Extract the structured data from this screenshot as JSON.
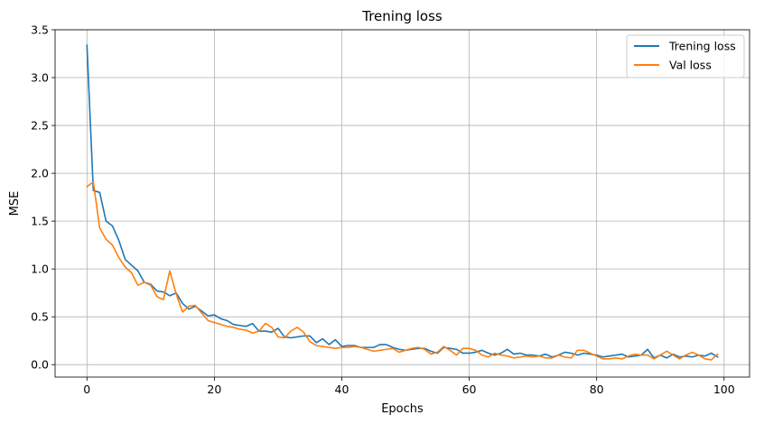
{
  "chart_data": {
    "type": "line",
    "title": "Trening loss",
    "xlabel": "Epochs",
    "ylabel": "MSE",
    "xlim": [
      -5,
      104
    ],
    "ylim": [
      -0.13,
      3.5
    ],
    "xticks": [
      0,
      20,
      40,
      60,
      80,
      100
    ],
    "yticks": [
      0.0,
      0.5,
      1.0,
      1.5,
      2.0,
      2.5,
      3.0,
      3.5
    ],
    "grid": true,
    "legend_position": "top-right",
    "x": [
      0,
      1,
      2,
      3,
      4,
      5,
      6,
      7,
      8,
      9,
      10,
      11,
      12,
      13,
      14,
      15,
      16,
      17,
      18,
      19,
      20,
      21,
      22,
      23,
      24,
      25,
      26,
      27,
      28,
      29,
      30,
      31,
      32,
      33,
      34,
      35,
      36,
      37,
      38,
      39,
      40,
      41,
      42,
      43,
      44,
      45,
      46,
      47,
      48,
      49,
      50,
      51,
      52,
      53,
      54,
      55,
      56,
      57,
      58,
      59,
      60,
      61,
      62,
      63,
      64,
      65,
      66,
      67,
      68,
      69,
      70,
      71,
      72,
      73,
      74,
      75,
      76,
      77,
      78,
      79,
      80,
      81,
      82,
      83,
      84,
      85,
      86,
      87,
      88,
      89,
      90,
      91,
      92,
      93,
      94,
      95,
      96,
      97,
      98,
      99
    ],
    "series": [
      {
        "name": "Trening loss",
        "color": "#1f77b4",
        "values": [
          3.34,
          1.82,
          1.8,
          1.5,
          1.45,
          1.3,
          1.1,
          1.04,
          0.98,
          0.86,
          0.84,
          0.77,
          0.76,
          0.72,
          0.75,
          0.64,
          0.58,
          0.61,
          0.56,
          0.51,
          0.52,
          0.48,
          0.46,
          0.42,
          0.41,
          0.4,
          0.43,
          0.35,
          0.35,
          0.34,
          0.38,
          0.29,
          0.28,
          0.29,
          0.3,
          0.3,
          0.23,
          0.27,
          0.21,
          0.26,
          0.19,
          0.2,
          0.2,
          0.18,
          0.18,
          0.18,
          0.21,
          0.21,
          0.18,
          0.16,
          0.15,
          0.16,
          0.17,
          0.17,
          0.14,
          0.12,
          0.18,
          0.17,
          0.16,
          0.12,
          0.12,
          0.13,
          0.15,
          0.12,
          0.1,
          0.12,
          0.16,
          0.11,
          0.12,
          0.1,
          0.1,
          0.09,
          0.11,
          0.08,
          0.1,
          0.13,
          0.12,
          0.1,
          0.12,
          0.11,
          0.1,
          0.08,
          0.09,
          0.1,
          0.11,
          0.08,
          0.09,
          0.1,
          0.16,
          0.07,
          0.1,
          0.07,
          0.11,
          0.08,
          0.09,
          0.08,
          0.1,
          0.09,
          0.12,
          0.08
        ]
      },
      {
        "name": "Val loss",
        "color": "#ff7f0e",
        "values": [
          1.86,
          1.91,
          1.43,
          1.31,
          1.25,
          1.12,
          1.02,
          0.96,
          0.83,
          0.86,
          0.83,
          0.71,
          0.68,
          0.98,
          0.74,
          0.55,
          0.61,
          0.62,
          0.54,
          0.46,
          0.44,
          0.42,
          0.4,
          0.39,
          0.37,
          0.36,
          0.33,
          0.35,
          0.43,
          0.39,
          0.29,
          0.28,
          0.35,
          0.39,
          0.34,
          0.24,
          0.2,
          0.19,
          0.18,
          0.17,
          0.18,
          0.18,
          0.19,
          0.18,
          0.16,
          0.14,
          0.15,
          0.16,
          0.17,
          0.13,
          0.15,
          0.17,
          0.18,
          0.16,
          0.11,
          0.13,
          0.19,
          0.15,
          0.1,
          0.17,
          0.17,
          0.15,
          0.1,
          0.08,
          0.12,
          0.1,
          0.09,
          0.07,
          0.08,
          0.09,
          0.08,
          0.09,
          0.07,
          0.07,
          0.1,
          0.08,
          0.07,
          0.15,
          0.15,
          0.12,
          0.09,
          0.06,
          0.06,
          0.07,
          0.06,
          0.09,
          0.11,
          0.1,
          0.1,
          0.06,
          0.1,
          0.14,
          0.1,
          0.06,
          0.1,
          0.13,
          0.1,
          0.06,
          0.05,
          0.11
        ]
      }
    ]
  }
}
